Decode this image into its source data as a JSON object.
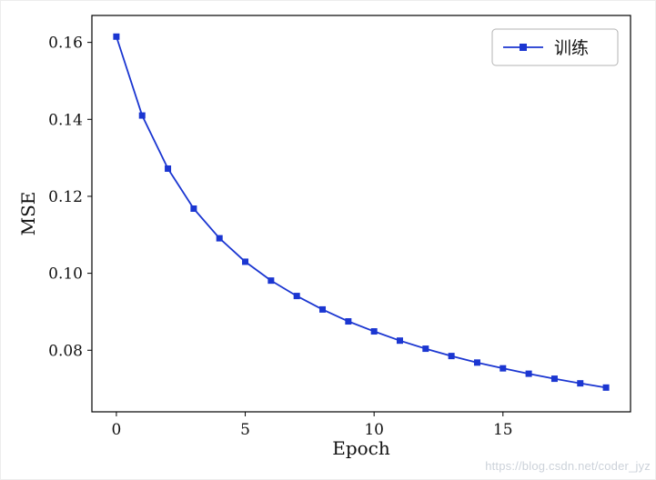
{
  "watermark": "https://blog.csdn.net/coder_jyz",
  "chart_data": {
    "type": "line",
    "title": "",
    "xlabel": "Epoch",
    "ylabel": "MSE",
    "x": [
      0,
      1,
      2,
      3,
      4,
      5,
      6,
      7,
      8,
      9,
      10,
      11,
      12,
      13,
      14,
      15,
      16,
      17,
      18,
      19
    ],
    "series": [
      {
        "name": "训练",
        "color": "#1b36d1",
        "marker": "square",
        "values": [
          0.1615,
          0.141,
          0.1272,
          0.1168,
          0.1091,
          0.103,
          0.0981,
          0.0941,
          0.0906,
          0.0875,
          0.0849,
          0.0825,
          0.0804,
          0.0785,
          0.0768,
          0.0753,
          0.0739,
          0.0726,
          0.0714,
          0.0703
        ]
      }
    ],
    "xticks": [
      0,
      5,
      10,
      15
    ],
    "yticks": [
      0.08,
      0.1,
      0.12,
      0.14,
      0.16
    ],
    "xlim": [
      -0.95,
      19.95
    ],
    "ylim": [
      0.064,
      0.167
    ],
    "grid": false,
    "legend_position": "upper right",
    "legend_border_color": "#b3b3b3",
    "axis_color": "#000000",
    "text_color": "#111111"
  }
}
